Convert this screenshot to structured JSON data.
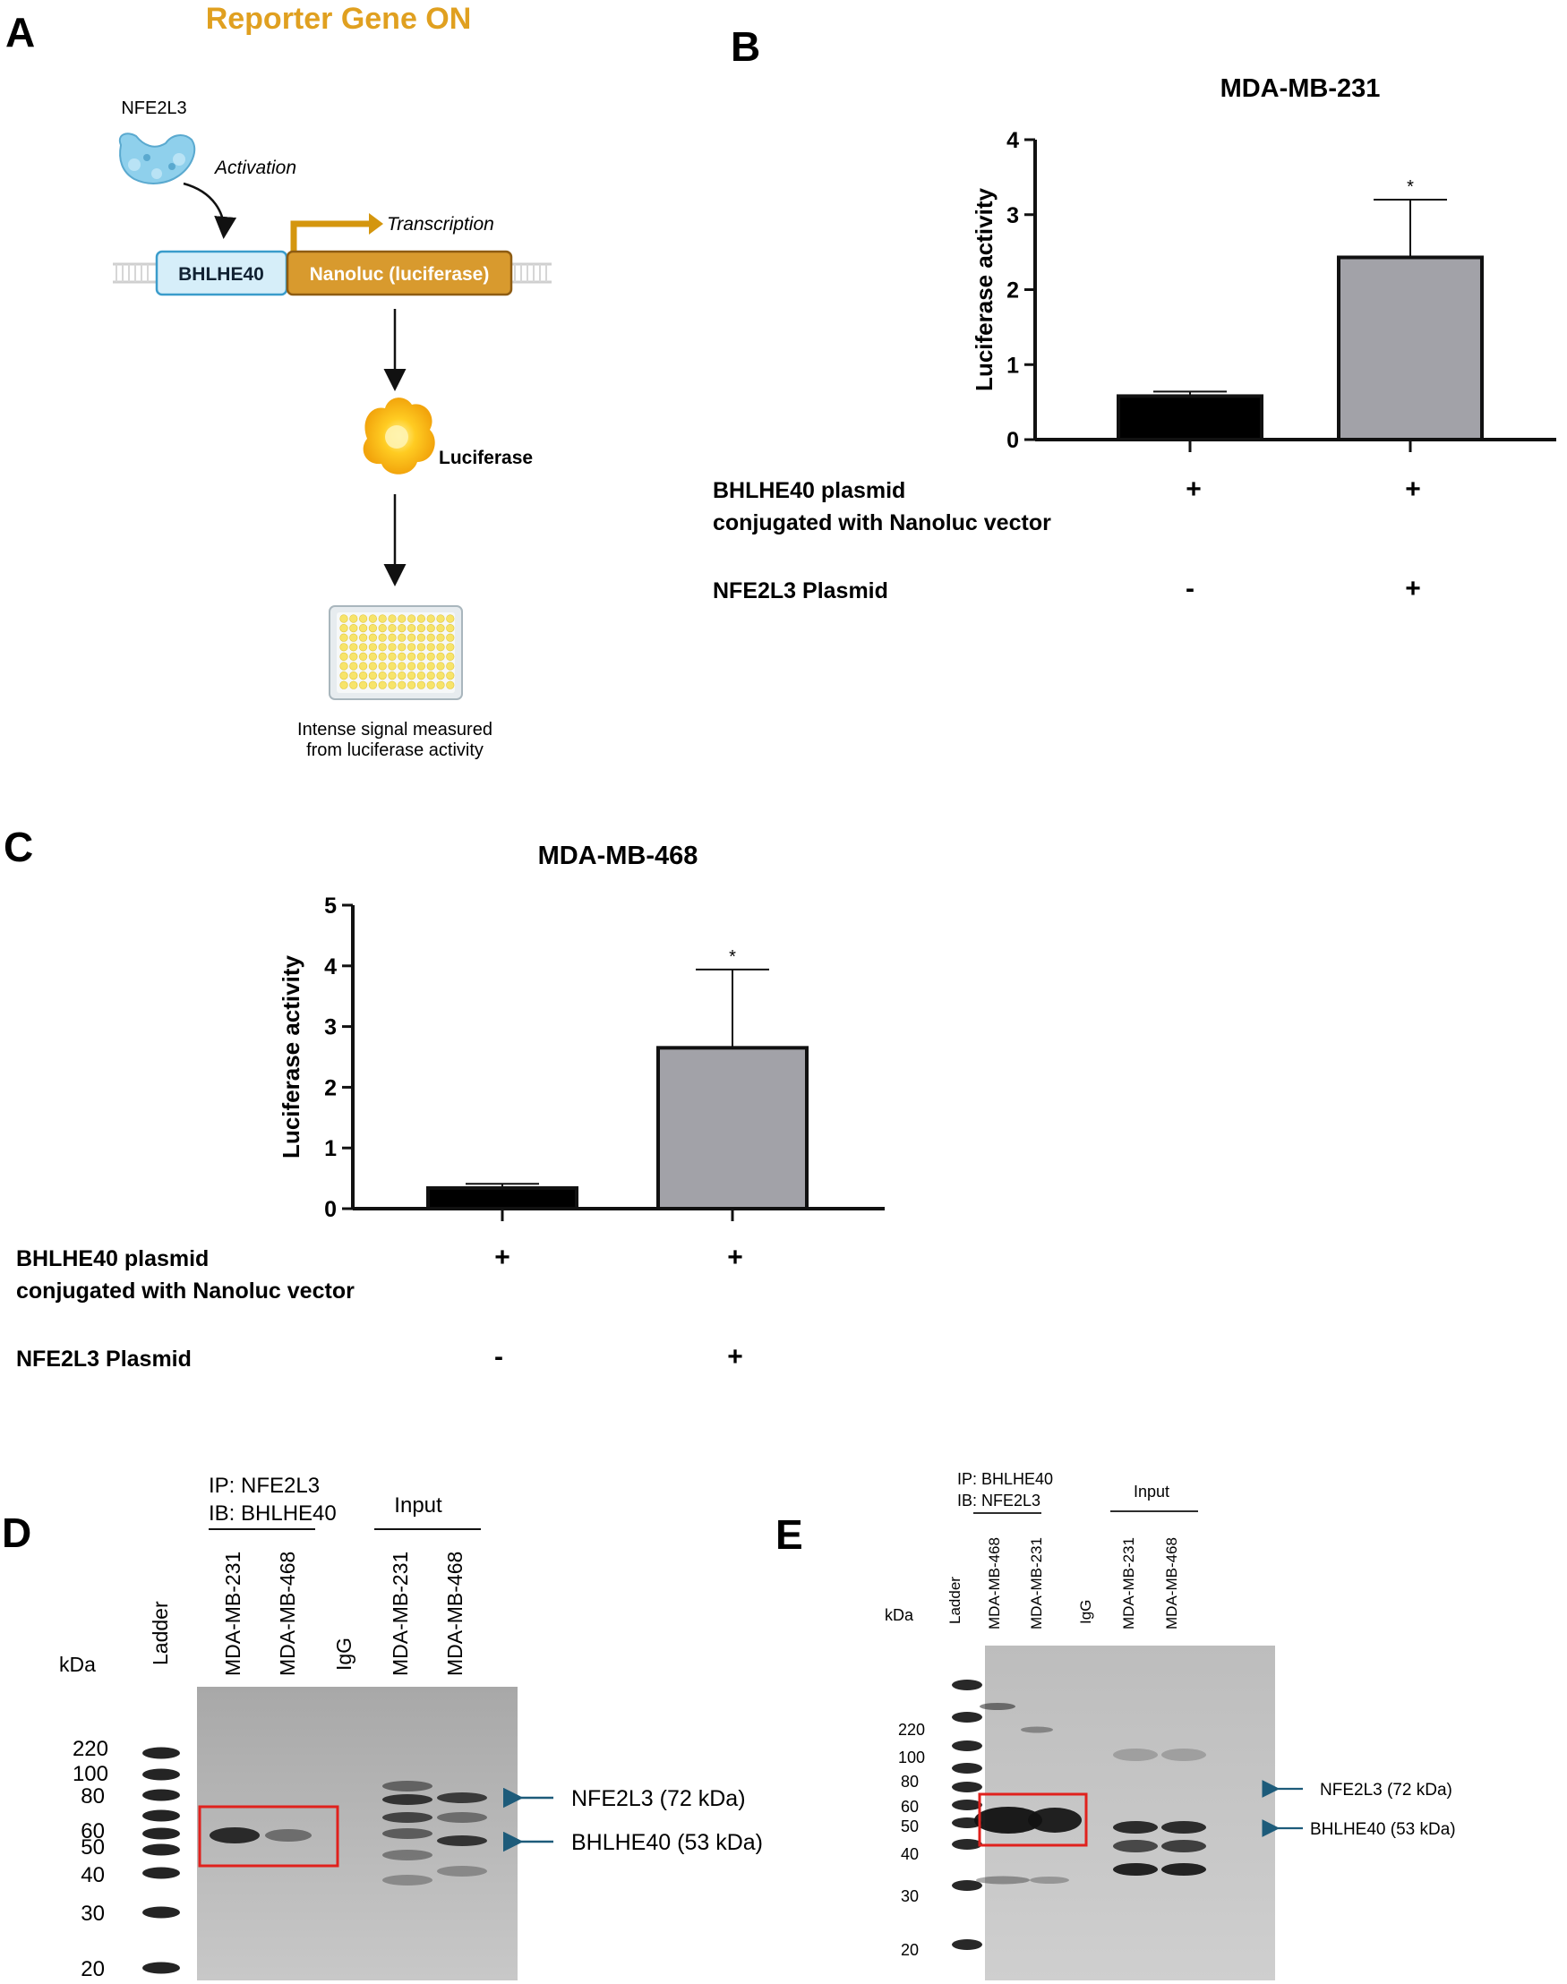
{
  "panels": {
    "A": {
      "letter": "A",
      "title": "Reporter Gene ON",
      "protein_label": "NFE2L3",
      "activation": "Activation",
      "transcription": "Transcription",
      "promoter": "BHLHE40",
      "gene": "Nanoluc (luciferase)",
      "product": "Luciferase",
      "readout_line1": "Intense signal measured",
      "readout_line2": "from luciferase activity"
    },
    "B": {
      "letter": "B",
      "row1_line1": "BHLHE40 plasmid",
      "row1_line2": "conjugated with Nanoluc vector",
      "row2": "NFE2L3 Plasmid",
      "row1_signs": [
        "+",
        "+"
      ],
      "row2_signs": [
        "-",
        "+"
      ]
    },
    "C": {
      "letter": "C",
      "row1_line1": "BHLHE40 plasmid",
      "row1_line2": "conjugated with Nanoluc vector",
      "row2": "NFE2L3 Plasmid",
      "row1_signs": [
        "+",
        "+"
      ],
      "row2_signs": [
        "-",
        "+"
      ]
    },
    "D": {
      "letter": "D",
      "ip": "IP: NFE2L3",
      "ib": "IB: BHLHE40",
      "input": "Input",
      "kda": "kDa",
      "lanes": [
        "Ladder",
        "MDA-MB-231",
        "MDA-MB-468",
        "IgG",
        "MDA-MB-231",
        "MDA-MB-468"
      ],
      "markers": [
        "220",
        "100",
        "80",
        "60",
        "50",
        "40",
        "30",
        "20"
      ],
      "arrow1": "NFE2L3 (72 kDa)",
      "arrow2": "BHLHE40 (53 kDa)"
    },
    "E": {
      "letter": "E",
      "ip": "IP: BHLHE40",
      "ib": "IB: NFE2L3",
      "input": "Input",
      "kda": "kDa",
      "lanes": [
        "Ladder",
        "MDA-MB-468",
        "MDA-MB-231",
        "IgG",
        "MDA-MB-231",
        "MDA-MB-468"
      ],
      "markers": [
        "220",
        "100",
        "80",
        "60",
        "50",
        "40",
        "30",
        "20"
      ],
      "arrow1": "NFE2L3 (72 kDa)",
      "arrow2": "BHLHE40 (53 kDa)"
    }
  },
  "chart_data": [
    {
      "type": "bar",
      "title": "MDA-MB-231",
      "ylabel": "Luciferase activity",
      "xlabel": "",
      "ylim": [
        0,
        4
      ],
      "yticks": [
        "0",
        "1",
        "2",
        "3",
        "4"
      ],
      "categories": [
        "-",
        "+"
      ],
      "values": [
        0.58,
        2.43
      ],
      "errors": [
        0.06,
        0.77
      ],
      "bar_colors": [
        "#000000",
        "#a2a2a8"
      ],
      "significance": [
        "",
        "*"
      ]
    },
    {
      "type": "bar",
      "title": "MDA-MB-468",
      "ylabel": "Luciferase activity",
      "xlabel": "",
      "ylim": [
        0,
        5
      ],
      "yticks": [
        "0",
        "1",
        "2",
        "3",
        "4",
        "5"
      ],
      "categories": [
        "-",
        "+"
      ],
      "values": [
        0.34,
        2.65
      ],
      "errors": [
        0.07,
        1.29
      ],
      "bar_colors": [
        "#000000",
        "#a2a2a8"
      ],
      "significance": [
        "",
        "*"
      ]
    }
  ]
}
